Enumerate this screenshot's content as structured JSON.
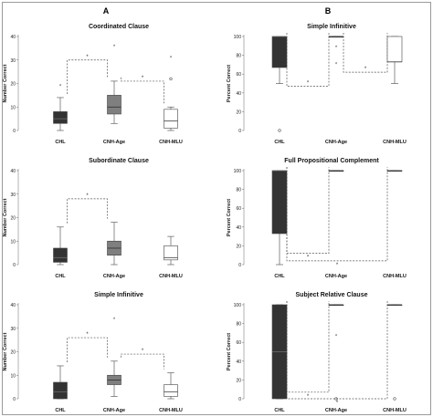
{
  "figure": {
    "frame_color": "#9a9a9a",
    "column_labels": [
      "A",
      "B"
    ]
  },
  "colors": {
    "CHL": "#333333",
    "CNH-Age": "#7f7f7f",
    "CNH-MLU": "#ffffff",
    "outline": "#444444",
    "bracket": "#555555"
  },
  "chart_data": [
    {
      "id": "A1",
      "type": "box",
      "title": "Coordinated Clause",
      "ylabel": "Number Correct",
      "ylim": [
        0,
        40
      ],
      "yticks": [
        0,
        10,
        20,
        30,
        40
      ],
      "categories": [
        "CHL",
        "CNH-Age",
        "CNH-MLU"
      ],
      "boxes": [
        {
          "group": "CHL",
          "min": 0,
          "q1": 3,
          "median": 5,
          "q3": 8,
          "max": 14,
          "outliers": [
            {
              "value": 19,
              "marker": "*"
            }
          ]
        },
        {
          "group": "CNH-Age",
          "min": 3,
          "q1": 7,
          "median": 10,
          "q3": 15,
          "max": 21,
          "outliers": [
            {
              "value": 36,
              "marker": "*"
            }
          ]
        },
        {
          "group": "CNH-MLU",
          "min": 0,
          "q1": 1,
          "median": 4,
          "q3": 9,
          "max": 10,
          "outliers": [
            {
              "value": 31,
              "marker": "*"
            },
            {
              "value": 22,
              "marker": "o"
            }
          ]
        }
      ],
      "significance": [
        {
          "from": "CHL",
          "to": "CNH-Age",
          "level": 30,
          "label": "*"
        },
        {
          "from": "CNH-Age",
          "to": "CNH-MLU",
          "level": 21,
          "label": "*"
        }
      ]
    },
    {
      "id": "A2",
      "type": "box",
      "title": "Subordinate Clause",
      "ylabel": "Number Correct",
      "ylim": [
        0,
        40
      ],
      "yticks": [
        0,
        10,
        20,
        30,
        40
      ],
      "categories": [
        "CHL",
        "CNH-Age",
        "CNH-MLU"
      ],
      "boxes": [
        {
          "group": "CHL",
          "min": 0,
          "q1": 1,
          "median": 3,
          "q3": 7,
          "max": 16,
          "outliers": []
        },
        {
          "group": "CNH-Age",
          "min": 0,
          "q1": 4,
          "median": 7,
          "q3": 10,
          "max": 18,
          "outliers": []
        },
        {
          "group": "CNH-MLU",
          "min": 0,
          "q1": 2,
          "median": 3,
          "q3": 8,
          "max": 12,
          "outliers": []
        }
      ],
      "significance": [
        {
          "from": "CHL",
          "to": "CNH-Age",
          "level": 28,
          "label": "*"
        }
      ]
    },
    {
      "id": "A3",
      "type": "box",
      "title": "Simple Infinitive",
      "ylabel": "Number Correct",
      "ylim": [
        0,
        40
      ],
      "yticks": [
        0,
        10,
        20,
        30,
        40
      ],
      "categories": [
        "CHL",
        "CNH-Age",
        "CNH-MLU"
      ],
      "boxes": [
        {
          "group": "CHL",
          "min": 0,
          "q1": 0,
          "median": 3,
          "q3": 7,
          "max": 14,
          "outliers": []
        },
        {
          "group": "CNH-Age",
          "min": 1,
          "q1": 6,
          "median": 8,
          "q3": 10,
          "max": 16,
          "outliers": [
            {
              "value": 34,
              "marker": "*"
            }
          ]
        },
        {
          "group": "CNH-MLU",
          "min": 0,
          "q1": 1,
          "median": 3,
          "q3": 6,
          "max": 11,
          "outliers": []
        }
      ],
      "significance": [
        {
          "from": "CHL",
          "to": "CNH-Age",
          "level": 26,
          "label": "*"
        },
        {
          "from": "CNH-Age",
          "to": "CNH-MLU",
          "level": 19,
          "label": "*"
        }
      ]
    },
    {
      "id": "B1",
      "type": "box",
      "title": "Simple Infinitive",
      "ylabel": "Percent Correct",
      "ylim": [
        0,
        100
      ],
      "yticks": [
        0,
        20,
        40,
        60,
        80,
        100
      ],
      "categories": [
        "CHL",
        "CNH-Age",
        "CNH-MLU"
      ],
      "boxes": [
        {
          "group": "CHL",
          "min": 50,
          "q1": 67,
          "median": 100,
          "q3": 100,
          "max": 100,
          "outliers": [
            {
              "value": 0,
              "marker": "o"
            }
          ]
        },
        {
          "group": "CNH-Age",
          "min": 100,
          "q1": 100,
          "median": 100,
          "q3": 100,
          "max": 100,
          "outliers": [
            {
              "value": 89,
              "marker": "*"
            },
            {
              "value": 71,
              "marker": "*"
            }
          ]
        },
        {
          "group": "CNH-MLU",
          "min": 50,
          "q1": 73,
          "median": 73,
          "q3": 100,
          "max": 100,
          "outliers": []
        }
      ],
      "significance": [
        {
          "from": "CHL",
          "to": "CNH-Age",
          "level": 47,
          "label": "*"
        },
        {
          "from": "CNH-Age",
          "to": "CNH-MLU",
          "level": 62,
          "label": "*"
        }
      ]
    },
    {
      "id": "B2",
      "type": "box",
      "title": "Full Propositional Complement",
      "ylabel": "Percent Correct",
      "ylim": [
        0,
        100
      ],
      "yticks": [
        0,
        20,
        40,
        60,
        80,
        100
      ],
      "categories": [
        "CHL",
        "CNH-Age",
        "CNH-MLU"
      ],
      "boxes": [
        {
          "group": "CHL",
          "min": 0,
          "q1": 33,
          "median": 100,
          "q3": 100,
          "max": 100,
          "outliers": []
        },
        {
          "group": "CNH-Age",
          "min": 100,
          "q1": 100,
          "median": 100,
          "q3": 100,
          "max": 100,
          "outliers": []
        },
        {
          "group": "CNH-MLU",
          "min": 100,
          "q1": 100,
          "median": 100,
          "q3": 100,
          "max": 100,
          "outliers": []
        }
      ],
      "significance": [
        {
          "from": "CHL",
          "to": "CNH-Age",
          "level": 12,
          "label": "*"
        },
        {
          "from": "CHL",
          "to": "CNH-MLU",
          "level": 4,
          "label": "*"
        }
      ]
    },
    {
      "id": "B3",
      "type": "box",
      "title": "Subject Relative Clause",
      "ylabel": "Percent Correct",
      "ylim": [
        0,
        100
      ],
      "yticks": [
        0,
        20,
        40,
        60,
        80,
        100
      ],
      "categories": [
        "CHL",
        "CNH-Age",
        "CNH-MLU"
      ],
      "boxes": [
        {
          "group": "CHL",
          "min": 0,
          "q1": 0,
          "median": 50,
          "q3": 100,
          "max": 100,
          "outliers": []
        },
        {
          "group": "CNH-Age",
          "min": 100,
          "q1": 100,
          "median": 100,
          "q3": 100,
          "max": 100,
          "outliers": [
            {
              "value": 67,
              "marker": "*"
            },
            {
              "value": 0,
              "marker": "o"
            }
          ]
        },
        {
          "group": "CNH-MLU",
          "min": 100,
          "q1": 100,
          "median": 100,
          "q3": 100,
          "max": 100,
          "outliers": [
            {
              "value": 0,
              "marker": "o"
            }
          ]
        }
      ],
      "significance": [
        {
          "from": "CHL",
          "to": "CNH-Age",
          "level": 7,
          "label": "*"
        },
        {
          "from": "CHL",
          "to": "CNH-MLU",
          "level": 0,
          "label": "*"
        }
      ]
    }
  ]
}
